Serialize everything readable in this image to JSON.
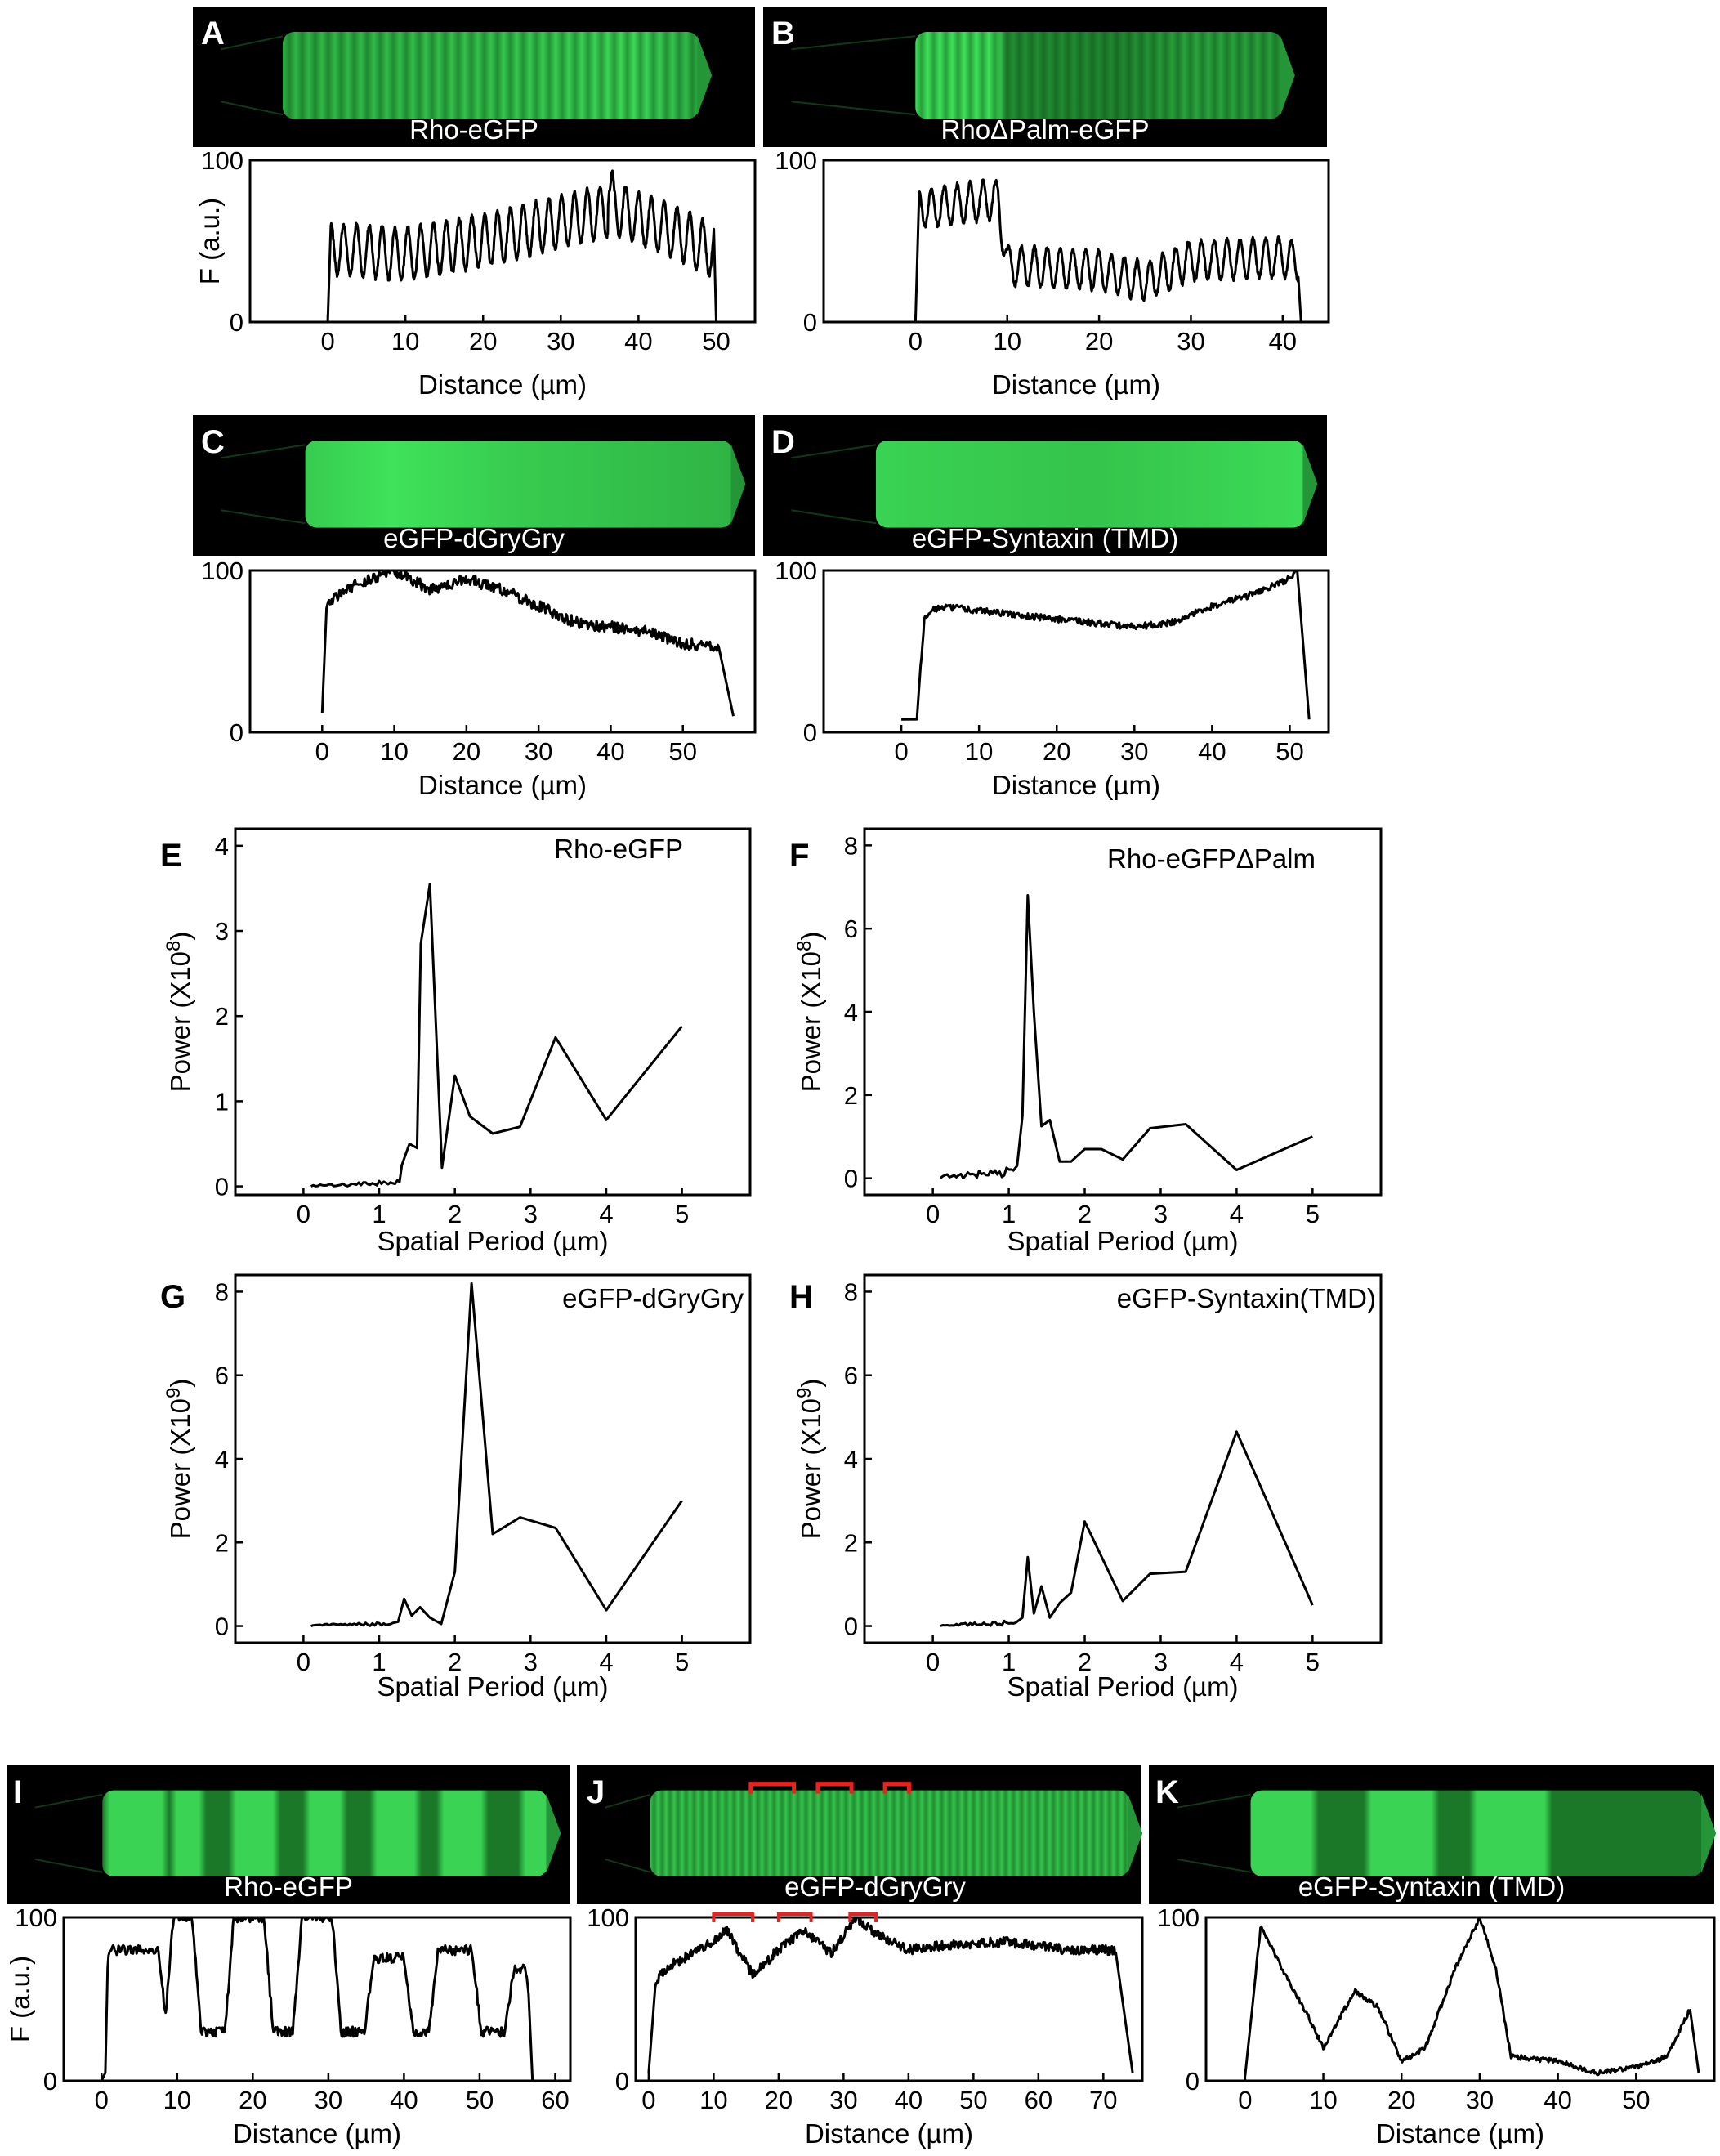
{
  "colors": {
    "fluor_bright": "#3fe25a",
    "fluor_dim": "#0b4a14",
    "background": "#000000",
    "bracket": "#e8231f",
    "line": "#000000"
  },
  "chart_data": [
    {
      "id": "A",
      "type": "line",
      "panel_letter": "A",
      "image_label": "Rho-eGFP",
      "xlabel": "Distance (µm)",
      "ylabel": "F (a.u.)",
      "xlim": [
        -10,
        55
      ],
      "ylim": [
        0,
        100
      ],
      "xticks": [
        0,
        10,
        20,
        30,
        40,
        50
      ],
      "yticks": [
        0,
        100
      ],
      "profile": {
        "pattern": "striated",
        "length": 50,
        "base": [
          [
            1,
            45
          ],
          [
            10,
            42
          ],
          [
            20,
            50
          ],
          [
            30,
            62
          ],
          [
            37,
            70
          ],
          [
            45,
            55
          ],
          [
            49,
            45
          ]
        ],
        "amplitude": 16,
        "period": 1.65,
        "extra_peaks": [
          [
            36.6,
            94
          ]
        ]
      },
      "image": {
        "cell": [
          0.16,
          0.9
        ],
        "pattern": "striated",
        "bands": 32,
        "brightness": [
          [
            0.0,
            0.7
          ],
          [
            0.5,
            0.8
          ],
          [
            0.85,
            0.95
          ],
          [
            1.0,
            0.7
          ]
        ]
      }
    },
    {
      "id": "B",
      "type": "line",
      "panel_letter": "B",
      "image_label": "RhoΔPalm-eGFP",
      "xlabel": "Distance (µm)",
      "ylabel": "",
      "xlim": [
        -10,
        45
      ],
      "ylim": [
        0,
        100
      ],
      "xticks": [
        0,
        10,
        20,
        30,
        40
      ],
      "yticks": [
        0,
        100
      ],
      "profile": {
        "pattern": "striated",
        "length": 42,
        "base": [
          [
            0.5,
            70
          ],
          [
            9,
            76
          ],
          [
            10,
            35
          ],
          [
            20,
            32
          ],
          [
            25,
            25
          ],
          [
            30,
            38
          ],
          [
            40,
            40
          ],
          [
            41,
            38
          ]
        ],
        "amplitude": 12,
        "period": 1.4
      },
      "image": {
        "cell": [
          0.27,
          0.92
        ],
        "pattern": "striated",
        "bands": 30,
        "brightness": [
          [
            0.0,
            1.0
          ],
          [
            0.22,
            1.0
          ],
          [
            0.25,
            0.45
          ],
          [
            0.55,
            0.4
          ],
          [
            0.75,
            0.6
          ],
          [
            1.0,
            0.55
          ]
        ]
      }
    },
    {
      "id": "C",
      "type": "line",
      "panel_letter": "C",
      "image_label": "eGFP-dGryGry",
      "xlabel": "Distance (µm)",
      "ylabel": "",
      "xlim": [
        -10,
        60
      ],
      "ylim": [
        0,
        100
      ],
      "xticks": [
        0,
        10,
        20,
        30,
        40,
        50
      ],
      "yticks": [
        0,
        100
      ],
      "profile": {
        "pattern": "smooth",
        "start": [
          0,
          12
        ],
        "end": [
          57,
          10
        ],
        "base": [
          [
            0.6,
            80
          ],
          [
            5,
            92
          ],
          [
            10,
            100
          ],
          [
            15,
            88
          ],
          [
            20,
            95
          ],
          [
            25,
            88
          ],
          [
            30,
            78
          ],
          [
            35,
            68
          ],
          [
            40,
            65
          ],
          [
            45,
            62
          ],
          [
            50,
            55
          ],
          [
            55,
            52
          ]
        ],
        "noise": 3.5
      },
      "image": {
        "cell": [
          0.2,
          0.96
        ],
        "pattern": "smooth",
        "brightness": [
          [
            0.0,
            0.85
          ],
          [
            0.2,
            1.0
          ],
          [
            0.5,
            0.85
          ],
          [
            1.0,
            0.7
          ]
        ]
      }
    },
    {
      "id": "D",
      "type": "line",
      "panel_letter": "D",
      "image_label": "eGFP-Syntaxin (TMD)",
      "xlabel": "Distance (µm)",
      "ylabel": "",
      "xlim": [
        -10,
        55
      ],
      "ylim": [
        0,
        100
      ],
      "xticks": [
        0,
        10,
        20,
        30,
        40,
        50
      ],
      "yticks": [
        0,
        100
      ],
      "profile": {
        "pattern": "smooth",
        "start": [
          0,
          8
        ],
        "end": [
          52.5,
          8
        ],
        "base": [
          [
            2,
            10
          ],
          [
            3,
            72
          ],
          [
            5,
            78
          ],
          [
            10,
            75
          ],
          [
            20,
            70
          ],
          [
            30,
            65
          ],
          [
            35,
            68
          ],
          [
            40,
            78
          ],
          [
            45,
            85
          ],
          [
            50,
            95
          ],
          [
            51,
            102
          ]
        ],
        "noise": 2
      },
      "image": {
        "cell": [
          0.2,
          0.96
        ],
        "pattern": "smooth",
        "brightness": [
          [
            0.0,
            0.9
          ],
          [
            0.5,
            0.8
          ],
          [
            1.0,
            0.95
          ]
        ]
      }
    },
    {
      "id": "E",
      "type": "line",
      "title": "Rho-eGFP",
      "panel_letter": "E",
      "xlabel": "Spatial Period (µm)",
      "ylabel": "Power (X10",
      "ylabel_exp": "8",
      "ylabel_end": ")",
      "xlim": [
        -0.9,
        5.9
      ],
      "ylim": [
        -0.1,
        4.2
      ],
      "xticks": [
        0,
        1,
        2,
        3,
        4,
        5
      ],
      "yticks": [
        0,
        1,
        2,
        3,
        4
      ],
      "noise_range": [
        0.1,
        1.3
      ],
      "noise_level": 0.05,
      "points": [
        [
          1.3,
          0.25
        ],
        [
          1.4,
          0.5
        ],
        [
          1.5,
          0.45
        ],
        [
          1.55,
          2.85
        ],
        [
          1.67,
          3.55
        ],
        [
          1.83,
          0.22
        ],
        [
          2.0,
          1.3
        ],
        [
          2.2,
          0.82
        ],
        [
          2.5,
          0.62
        ],
        [
          2.86,
          0.7
        ],
        [
          3.33,
          1.75
        ],
        [
          4.0,
          0.78
        ],
        [
          5.0,
          1.88
        ]
      ]
    },
    {
      "id": "F",
      "type": "line",
      "title": "Rho-eGFPΔPalm",
      "panel_letter": "F",
      "xlabel": "Spatial Period (µm)",
      "ylabel": "Power (X10",
      "ylabel_exp": "8",
      "ylabel_end": ")",
      "xlim": [
        -0.9,
        5.9
      ],
      "ylim": [
        -0.4,
        8.4
      ],
      "xticks": [
        0,
        1,
        2,
        3,
        4,
        5
      ],
      "yticks": [
        0,
        2,
        4,
        6,
        8
      ],
      "noise_range": [
        0.1,
        1.1
      ],
      "noise_level": 0.2,
      "points": [
        [
          1.11,
          0.3
        ],
        [
          1.18,
          1.5
        ],
        [
          1.25,
          6.8
        ],
        [
          1.33,
          4.0
        ],
        [
          1.43,
          1.25
        ],
        [
          1.54,
          1.4
        ],
        [
          1.67,
          0.4
        ],
        [
          1.82,
          0.4
        ],
        [
          2.0,
          0.7
        ],
        [
          2.22,
          0.7
        ],
        [
          2.5,
          0.45
        ],
        [
          2.86,
          1.2
        ],
        [
          3.33,
          1.3
        ],
        [
          4.0,
          0.2
        ],
        [
          5.0,
          1.0
        ]
      ]
    },
    {
      "id": "G",
      "type": "line",
      "title": "eGFP-dGryGry",
      "panel_letter": "G",
      "xlabel": "Spatial Period (µm)",
      "ylabel": "Power (X10",
      "ylabel_exp": "9",
      "ylabel_end": ")",
      "xlim": [
        -0.9,
        5.9
      ],
      "ylim": [
        -0.4,
        8.4
      ],
      "xticks": [
        0,
        1,
        2,
        3,
        4,
        5
      ],
      "yticks": [
        0,
        2,
        4,
        6,
        8
      ],
      "noise_range": [
        0.1,
        1.2
      ],
      "noise_level": 0.08,
      "points": [
        [
          1.25,
          0.1
        ],
        [
          1.33,
          0.65
        ],
        [
          1.43,
          0.25
        ],
        [
          1.54,
          0.45
        ],
        [
          1.67,
          0.2
        ],
        [
          1.82,
          0.05
        ],
        [
          2.0,
          1.3
        ],
        [
          2.22,
          8.2
        ],
        [
          2.5,
          2.2
        ],
        [
          2.86,
          2.6
        ],
        [
          3.33,
          2.35
        ],
        [
          4.0,
          0.38
        ],
        [
          5.0,
          3.0
        ]
      ]
    },
    {
      "id": "H",
      "type": "line",
      "title": "eGFP-Syntaxin(TMD)",
      "panel_letter": "H",
      "xlabel": "Spatial Period (µm)",
      "ylabel": "Power (X10",
      "ylabel_exp": "9",
      "ylabel_end": ")",
      "xlim": [
        -0.9,
        5.9
      ],
      "ylim": [
        -0.4,
        8.4
      ],
      "xticks": [
        0,
        1,
        2,
        3,
        4,
        5
      ],
      "yticks": [
        0,
        2,
        4,
        6,
        8
      ],
      "noise_range": [
        0.1,
        1.1
      ],
      "noise_level": 0.1,
      "points": [
        [
          1.18,
          0.2
        ],
        [
          1.25,
          1.65
        ],
        [
          1.33,
          0.3
        ],
        [
          1.43,
          0.95
        ],
        [
          1.54,
          0.2
        ],
        [
          1.67,
          0.55
        ],
        [
          1.82,
          0.8
        ],
        [
          2.0,
          2.5
        ],
        [
          2.5,
          0.6
        ],
        [
          2.86,
          1.25
        ],
        [
          3.33,
          1.3
        ],
        [
          4.0,
          4.65
        ],
        [
          5.0,
          0.5
        ]
      ]
    },
    {
      "id": "I",
      "type": "line",
      "panel_letter": "I",
      "image_label": "Rho-eGFP",
      "xlabel": "Distance (µm)",
      "ylabel": "F (a.u.)",
      "xlim": [
        -5,
        62
      ],
      "ylim": [
        0,
        100
      ],
      "xticks": [
        0,
        10,
        20,
        30,
        40,
        50,
        60
      ],
      "yticks": [
        0,
        100
      ],
      "profile": {
        "pattern": "bands",
        "length": 57,
        "bands": [
          [
            1,
            7.5,
            80
          ],
          [
            9.5,
            12,
            100
          ],
          [
            17.5,
            21.5,
            100
          ],
          [
            26.5,
            30.5,
            100
          ],
          [
            36,
            40,
            75
          ],
          [
            44.5,
            49,
            80
          ],
          [
            54.5,
            56,
            68
          ]
        ],
        "baseline": 30,
        "noise": 3
      },
      "image": {
        "cell": [
          0.17,
          0.96
        ],
        "pattern": "bands",
        "bands": [
          [
            0.02,
            0.13
          ],
          [
            0.17,
            0.21
          ],
          [
            0.31,
            0.37
          ],
          [
            0.47,
            0.53
          ],
          [
            0.63,
            0.7
          ],
          [
            0.78,
            0.85
          ],
          [
            0.96,
            0.99
          ]
        ]
      }
    },
    {
      "id": "J",
      "type": "line",
      "panel_letter": "J",
      "image_label": "eGFP-dGryGry",
      "xlabel": "Distance (µm)",
      "ylabel": "",
      "xlim": [
        -2,
        76
      ],
      "ylim": [
        0,
        100
      ],
      "xticks": [
        0,
        10,
        20,
        30,
        40,
        50,
        60,
        70
      ],
      "yticks": [
        0,
        100
      ],
      "profile": {
        "pattern": "smooth",
        "start": [
          0,
          5
        ],
        "end": [
          74.5,
          5
        ],
        "base": [
          [
            1,
            60
          ],
          [
            3,
            70
          ],
          [
            8,
            80
          ],
          [
            12,
            92
          ],
          [
            16,
            65
          ],
          [
            20,
            80
          ],
          [
            24,
            92
          ],
          [
            28,
            78
          ],
          [
            32,
            100
          ],
          [
            35,
            90
          ],
          [
            40,
            80
          ],
          [
            45,
            83
          ],
          [
            55,
            85
          ],
          [
            65,
            80
          ],
          [
            72,
            80
          ]
        ],
        "noise": 3
      },
      "brackets": [
        [
          10,
          16
        ],
        [
          20,
          25
        ],
        [
          31,
          35
        ]
      ],
      "bracket_level": 102,
      "image": {
        "cell": [
          0.13,
          0.98
        ],
        "pattern": "striated",
        "bands": 60,
        "brightness": [
          [
            0.0,
            0.8
          ],
          [
            1.0,
            0.8
          ]
        ],
        "brackets": [
          [
            0.21,
            0.3
          ],
          [
            0.35,
            0.42
          ],
          [
            0.49,
            0.54
          ]
        ]
      }
    },
    {
      "id": "K",
      "type": "line",
      "panel_letter": "K",
      "image_label": "eGFP-Syntaxin (TMD)",
      "xlabel": "Distance (µm)",
      "ylabel": "",
      "xlim": [
        -5,
        60
      ],
      "ylim": [
        0,
        100
      ],
      "xticks": [
        0,
        10,
        20,
        30,
        40,
        50
      ],
      "yticks": [
        0,
        100
      ],
      "profile": {
        "pattern": "smooth",
        "start": [
          0,
          3
        ],
        "end": [
          58,
          5
        ],
        "base": [
          [
            1,
            50
          ],
          [
            2,
            95
          ],
          [
            4,
            75
          ],
          [
            8,
            40
          ],
          [
            10,
            20
          ],
          [
            14,
            55
          ],
          [
            17,
            45
          ],
          [
            20,
            12
          ],
          [
            23,
            20
          ],
          [
            27,
            70
          ],
          [
            30,
            100
          ],
          [
            32,
            70
          ],
          [
            34,
            15
          ],
          [
            40,
            12
          ],
          [
            45,
            5
          ],
          [
            50,
            8
          ],
          [
            54,
            15
          ],
          [
            57,
            45
          ]
        ],
        "noise": 1.5
      },
      "image": {
        "cell": [
          0.18,
          0.98
        ],
        "pattern": "bands",
        "bands": [
          [
            0.0,
            0.12
          ],
          [
            0.28,
            0.4
          ],
          [
            0.5,
            0.64
          ]
        ]
      }
    }
  ]
}
